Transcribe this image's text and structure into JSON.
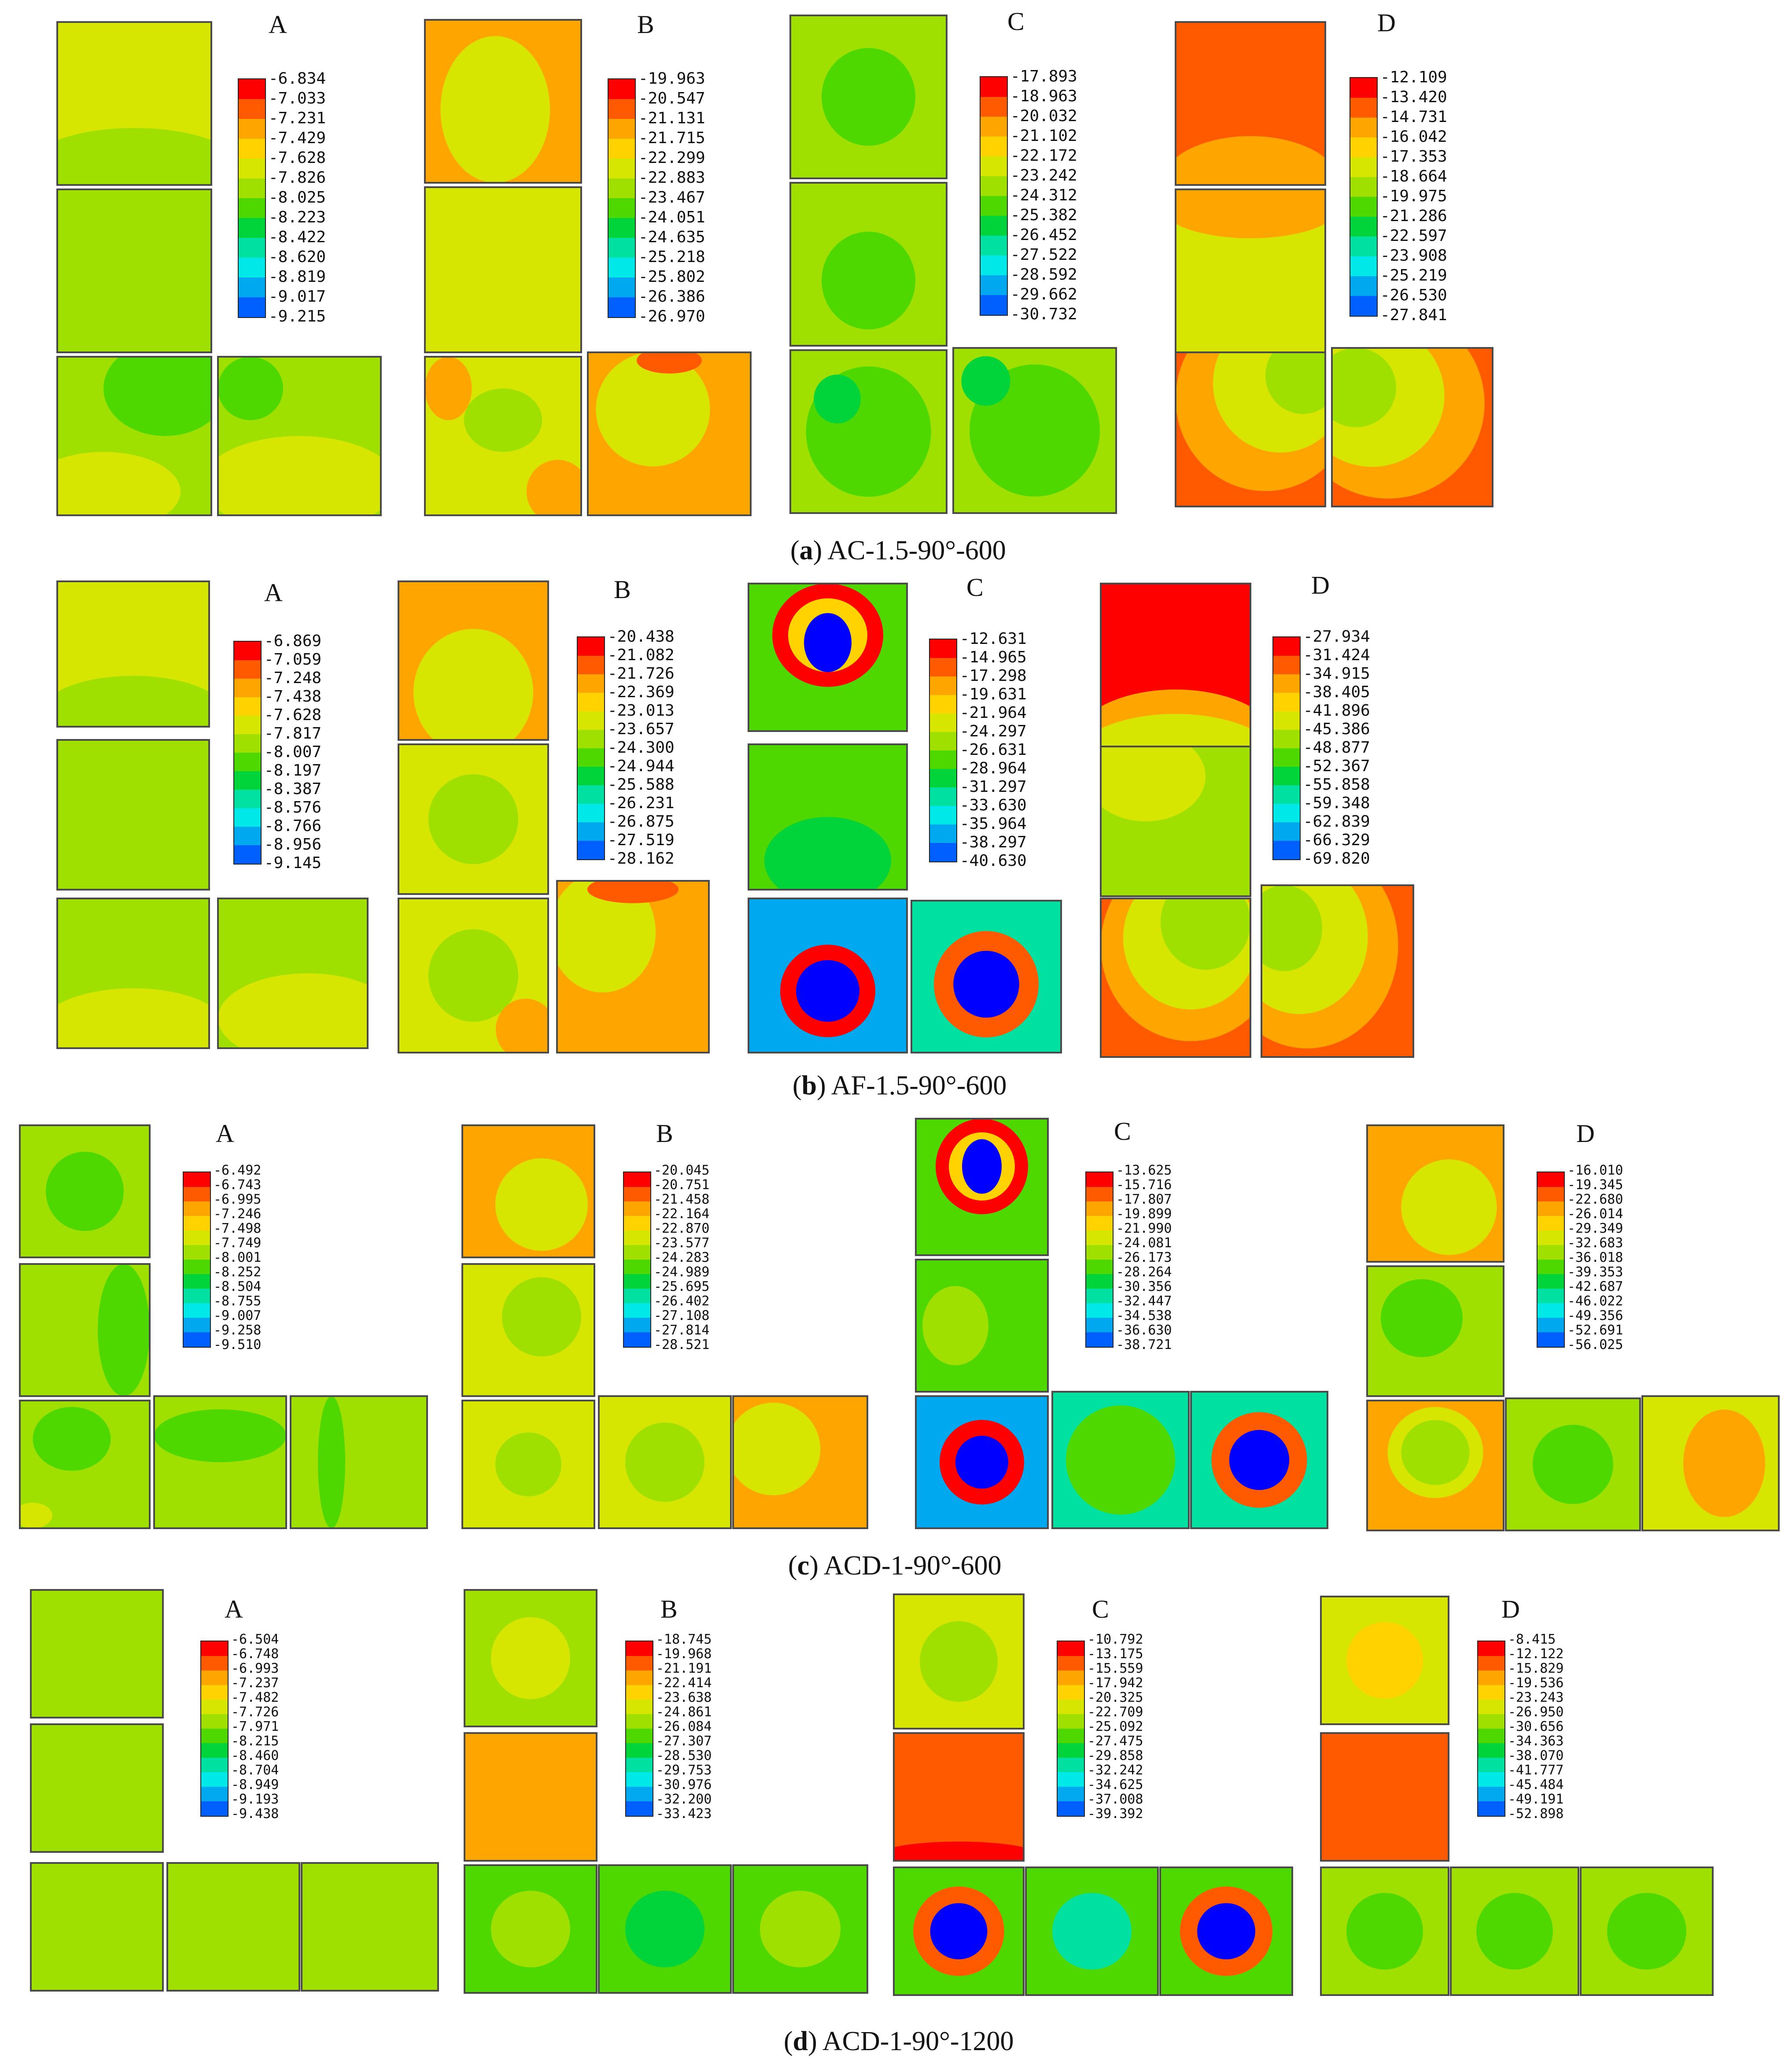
{
  "colors": {
    "scale": [
      "#ff0000",
      "#ff5a00",
      "#ffa500",
      "#ffd200",
      "#d7e600",
      "#9fe000",
      "#4fd800",
      "#00d43a",
      "#00e0a0",
      "#00e8e8",
      "#00a8f0",
      "#0060ff",
      "#0000ff"
    ],
    "outline": "#4a4a4a"
  },
  "rows": [
    {
      "caption": {
        "letter": "a",
        "text": "AC-1.5-90°-600"
      },
      "panels": [
        {
          "label": "A",
          "legend": [
            "-6.834",
            "-7.033",
            "-7.231",
            "-7.429",
            "-7.628",
            "-7.826",
            "-8.025",
            "-8.223",
            "-8.422",
            "-8.620",
            "-8.819",
            "-9.017",
            "-9.215"
          ]
        },
        {
          "label": "B",
          "legend": [
            "-19.963",
            "-20.547",
            "-21.131",
            "-21.715",
            "-22.299",
            "-22.883",
            "-23.467",
            "-24.051",
            "-24.635",
            "-25.218",
            "-25.802",
            "-26.386",
            "-26.970"
          ]
        },
        {
          "label": "C",
          "legend": [
            "-17.893",
            "-18.963",
            "-20.032",
            "-21.102",
            "-22.172",
            "-23.242",
            "-24.312",
            "-25.382",
            "-26.452",
            "-27.522",
            "-28.592",
            "-29.662",
            "-30.732"
          ]
        },
        {
          "label": "D",
          "legend": [
            "-12.109",
            "-13.420",
            "-14.731",
            "-16.042",
            "-17.353",
            "-18.664",
            "-19.975",
            "-21.286",
            "-22.597",
            "-23.908",
            "-25.219",
            "-26.530",
            "-27.841"
          ]
        }
      ]
    },
    {
      "caption": {
        "letter": "b",
        "text": "AF-1.5-90°-600"
      },
      "panels": [
        {
          "label": "A",
          "legend": [
            "-6.869",
            "-7.059",
            "-7.248",
            "-7.438",
            "-7.628",
            "-7.817",
            "-8.007",
            "-8.197",
            "-8.387",
            "-8.576",
            "-8.766",
            "-8.956",
            "-9.145"
          ]
        },
        {
          "label": "B",
          "legend": [
            "-20.438",
            "-21.082",
            "-21.726",
            "-22.369",
            "-23.013",
            "-23.657",
            "-24.300",
            "-24.944",
            "-25.588",
            "-26.231",
            "-26.875",
            "-27.519",
            "-28.162"
          ]
        },
        {
          "label": "C",
          "legend": [
            "-12.631",
            "-14.965",
            "-17.298",
            "-19.631",
            "-21.964",
            "-24.297",
            "-26.631",
            "-28.964",
            "-31.297",
            "-33.630",
            "-35.964",
            "-38.297",
            "-40.630"
          ]
        },
        {
          "label": "D",
          "legend": [
            "-27.934",
            "-31.424",
            "-34.915",
            "-38.405",
            "-41.896",
            "-45.386",
            "-48.877",
            "-52.367",
            "-55.858",
            "-59.348",
            "-62.839",
            "-66.329",
            "-69.820"
          ]
        }
      ]
    },
    {
      "caption": {
        "letter": "c",
        "text": "ACD-1-90°-600"
      },
      "panels": [
        {
          "label": "A",
          "legend": [
            "-6.492",
            "-6.743",
            "-6.995",
            "-7.246",
            "-7.498",
            "-7.749",
            "-8.001",
            "-8.252",
            "-8.504",
            "-8.755",
            "-9.007",
            "-9.258",
            "-9.510"
          ]
        },
        {
          "label": "B",
          "legend": [
            "-20.045",
            "-20.751",
            "-21.458",
            "-22.164",
            "-22.870",
            "-23.577",
            "-24.283",
            "-24.989",
            "-25.695",
            "-26.402",
            "-27.108",
            "-27.814",
            "-28.521"
          ]
        },
        {
          "label": "C",
          "legend": [
            "-13.625",
            "-15.716",
            "-17.807",
            "-19.899",
            "-21.990",
            "-24.081",
            "-26.173",
            "-28.264",
            "-30.356",
            "-32.447",
            "-34.538",
            "-36.630",
            "-38.721"
          ]
        },
        {
          "label": "D",
          "legend": [
            "-16.010",
            "-19.345",
            "-22.680",
            "-26.014",
            "-29.349",
            "-32.683",
            "-36.018",
            "-39.353",
            "-42.687",
            "-46.022",
            "-49.356",
            "-52.691",
            "-56.025"
          ]
        }
      ]
    },
    {
      "caption": {
        "letter": "d",
        "text": "ACD-1-90°-1200"
      },
      "panels": [
        {
          "label": "A",
          "legend": [
            "-6.504",
            "-6.748",
            "-6.993",
            "-7.237",
            "-7.482",
            "-7.726",
            "-7.971",
            "-8.215",
            "-8.460",
            "-8.704",
            "-8.949",
            "-9.193",
            "-9.438"
          ]
        },
        {
          "label": "B",
          "legend": [
            "-18.745",
            "-19.968",
            "-21.191",
            "-22.414",
            "-23.638",
            "-24.861",
            "-26.084",
            "-27.307",
            "-28.530",
            "-29.753",
            "-30.976",
            "-32.200",
            "-33.423"
          ]
        },
        {
          "label": "C",
          "legend": [
            "-10.792",
            "-13.175",
            "-15.559",
            "-17.942",
            "-20.325",
            "-22.709",
            "-25.092",
            "-27.475",
            "-29.858",
            "-32.242",
            "-34.625",
            "-37.008",
            "-39.392"
          ]
        },
        {
          "label": "D",
          "legend": [
            "-8.415",
            "-12.122",
            "-15.829",
            "-19.536",
            "-23.243",
            "-26.950",
            "-30.656",
            "-34.363",
            "-38.070",
            "-41.777",
            "-45.484",
            "-49.191",
            "-52.898"
          ]
        }
      ]
    }
  ]
}
